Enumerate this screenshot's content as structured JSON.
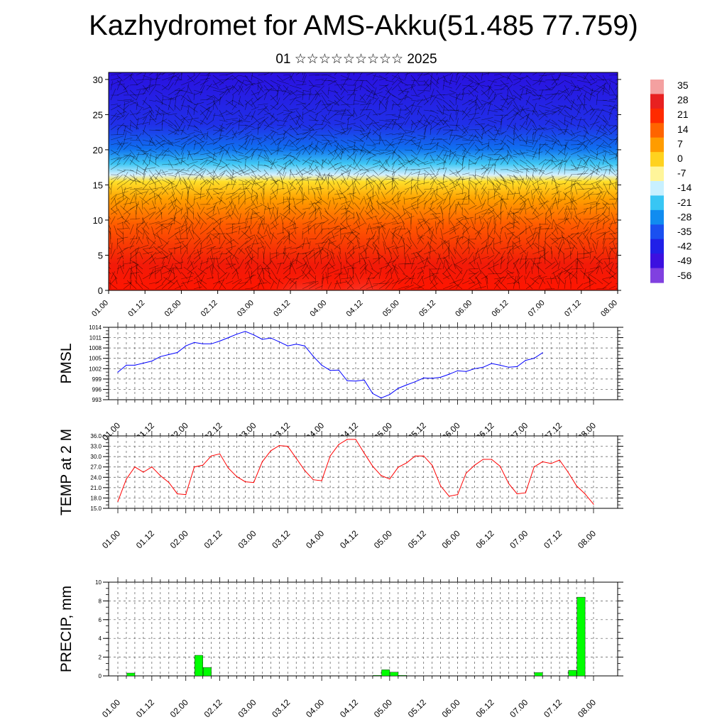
{
  "title": "Kazhydromet for AMS-Akku(51.485 77.759)",
  "subtitle": "01 ☆☆☆☆☆☆☆☆☆ 2025",
  "colors": {
    "pmsl_line": "#0000ff",
    "temp_line": "#ff0000",
    "precip_bar": "#00ff00"
  },
  "time_labels": [
    "01.00",
    "01.12",
    "02.00",
    "02.12",
    "03.00",
    "03.12",
    "04.00",
    "04.12",
    "05.00",
    "05.12",
    "06.00",
    "06.12",
    "07.00",
    "07.12",
    "08.00"
  ],
  "chart_data": [
    {
      "type": "heatmap",
      "name": "cross-section",
      "x_range": [
        0,
        7
      ],
      "y_ticks": [
        0,
        5,
        10,
        15,
        20,
        25,
        30
      ],
      "ylim": [
        0,
        31
      ],
      "colorbar_labels": [
        "35",
        "28",
        "21",
        "14",
        "7",
        "0",
        "-7",
        "-14",
        "-21",
        "-28",
        "-35",
        "-42",
        "-49",
        "-56"
      ],
      "colorbar_colors": [
        "#f4a0a0",
        "#e82020",
        "#ff2a00",
        "#ff6400",
        "#ff9c00",
        "#ffd21e",
        "#fff59a",
        "#c8f0ff",
        "#38c6f4",
        "#108cf0",
        "#1a50f0",
        "#2020e8",
        "#3c10e0",
        "#8040e0"
      ]
    },
    {
      "type": "line",
      "name": "PMSL",
      "ylabel": "PMSL",
      "ylim": [
        993,
        1014
      ],
      "y_ticks": [
        993,
        996,
        999,
        1002,
        1005,
        1008,
        1011,
        1014
      ],
      "x_start": 0,
      "x_step": 0.125,
      "values": [
        1001,
        1003,
        1003,
        1003.6,
        1004.2,
        1005.5,
        1006.1,
        1006.7,
        1008.6,
        1009.6,
        1009.2,
        1009.2,
        1010,
        1011,
        1012,
        1012.8,
        1011.8,
        1010.5,
        1010.9,
        1009.8,
        1008.6,
        1009.1,
        1008.6,
        1005.6,
        1003,
        1001.5,
        1001.6,
        998.5,
        998.4,
        998.7,
        994.8,
        993.5,
        994.5,
        996.3,
        997.3,
        998.2,
        999.3,
        999.2,
        999.5,
        1000.4,
        1001.4,
        1001.2,
        1002,
        1002.4,
        1003.5,
        1003,
        1002.4,
        1002.6,
        1004.4,
        1005,
        1006.6
      ]
    },
    {
      "type": "line",
      "name": "TEMP at 2 M",
      "ylabel": "TEMP at 2 M",
      "ylim": [
        15,
        36
      ],
      "y_ticks": [
        "15.0",
        "18.0",
        "21.0",
        "24.0",
        "27.0",
        "30.0",
        "33.0",
        "36.0"
      ],
      "x_start": 0,
      "x_step": 0.125,
      "values": [
        17,
        23.5,
        27,
        25.5,
        27,
        24.5,
        22.5,
        19.2,
        19,
        27,
        27.5,
        30.2,
        30.8,
        26.7,
        24.2,
        22.7,
        22.5,
        28.5,
        31.7,
        33.2,
        33,
        29.5,
        26,
        23.3,
        23,
        30.2,
        33.5,
        35,
        35,
        31,
        27.2,
        24.5,
        23.5,
        26.9,
        28.2,
        30.2,
        30.2,
        27.5,
        21.5,
        18.5,
        19,
        25.2,
        27.5,
        29.2,
        29.2,
        27.2,
        22.2,
        19.2,
        19.5,
        27,
        28.5,
        28,
        29,
        25.5,
        21.5,
        19.2,
        16.2
      ]
    },
    {
      "type": "bar",
      "name": "PRECIP",
      "ylabel": "PRECIP, mm",
      "ylim": [
        0,
        10
      ],
      "y_ticks": [
        0,
        2,
        4,
        6,
        8,
        10
      ],
      "x_start": 0,
      "x_step": 0.125,
      "values": [
        0,
        0,
        0.3,
        0,
        0,
        0,
        0,
        0,
        0,
        0,
        2.2,
        0.9,
        0,
        0,
        0,
        0,
        0,
        0,
        0,
        0,
        0,
        0,
        0,
        0,
        0,
        0,
        0,
        0,
        0,
        0,
        0,
        0.05,
        0.65,
        0.4,
        0.05,
        0,
        0,
        0,
        0,
        0,
        0,
        0,
        0,
        0,
        0,
        0,
        0,
        0,
        0,
        0,
        0.35,
        0,
        0,
        0,
        0.6,
        8.4
      ]
    }
  ]
}
